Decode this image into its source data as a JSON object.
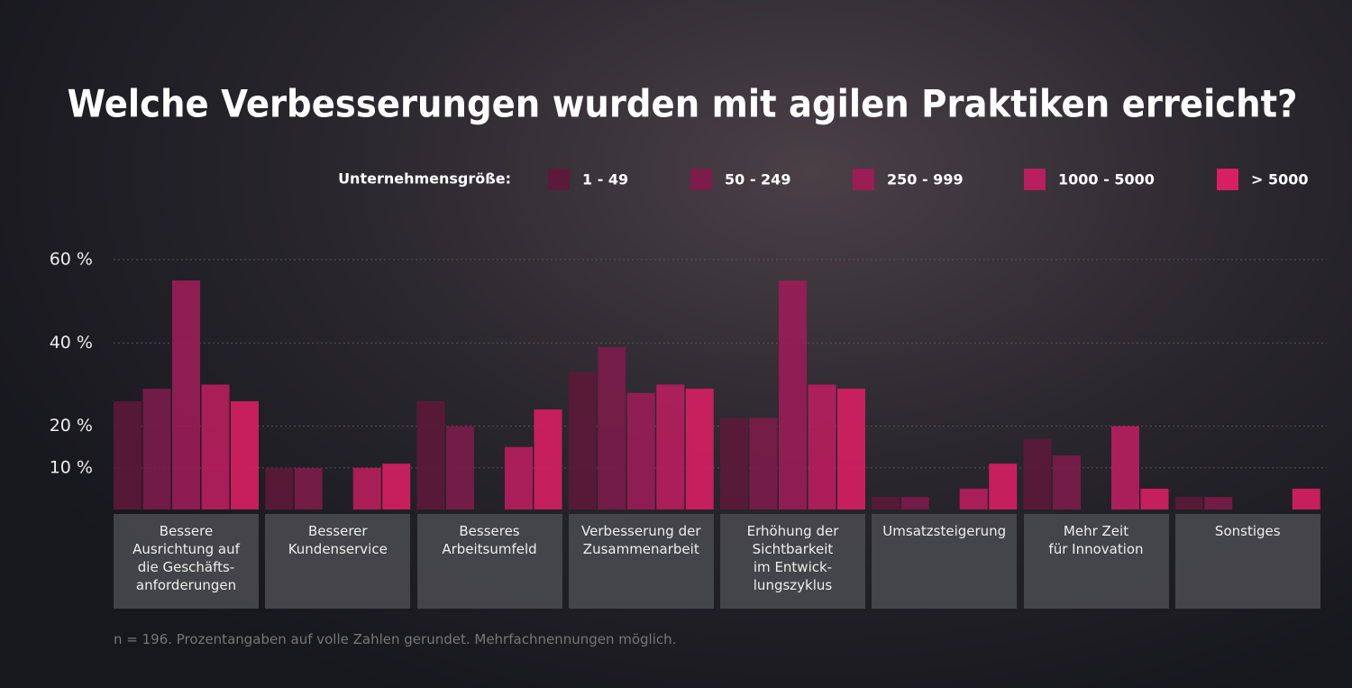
{
  "chart_data": {
    "type": "bar",
    "title": "Welche Verbesserungen wurden mit agilen Praktiken erreicht?",
    "legend_title": "Unternehmensgröße:",
    "categories": [
      "Bessere\nAusrichtung auf\ndie Geschäfts-\nanforderungen",
      "Besserer\nKundenservice",
      "Besseres\nArbeitsumfeld",
      "Verbesserung der\nZusammenarbeit",
      "Erhöhung der\nSichtbarkeit\nim Entwick-\nlungszyklus",
      "Umsatzsteigerung",
      "Mehr Zeit\nfür Innovation",
      "Sonstiges"
    ],
    "series": [
      {
        "name": "1 - 49",
        "color": "#5c1a3a",
        "values": [
          26,
          10,
          26,
          33,
          22,
          3,
          17,
          3
        ]
      },
      {
        "name": "50 - 249",
        "color": "#7b1c4a",
        "values": [
          29,
          10,
          20,
          39,
          22,
          3,
          13,
          3
        ]
      },
      {
        "name": "250 - 999",
        "color": "#9a1d56",
        "values": [
          55,
          0,
          0,
          28,
          55,
          0,
          0,
          0
        ]
      },
      {
        "name": "1000 - 5000",
        "color": "#b91e5e",
        "values": [
          30,
          10,
          15,
          30,
          30,
          5,
          20,
          0
        ]
      },
      {
        "name": "> 5000",
        "color": "#d81f63",
        "values": [
          26,
          11,
          24,
          29,
          29,
          11,
          5,
          5
        ]
      }
    ],
    "ylim": [
      0,
      70
    ],
    "yticks": [
      {
        "value": 10,
        "label": "10 %"
      },
      {
        "value": 20,
        "label": "20 %"
      },
      {
        "value": 40,
        "label": "40 %"
      },
      {
        "value": 60,
        "label": "60 %"
      }
    ],
    "grid": true,
    "footnote": "n = 196. Prozentangaben auf volle Zahlen gerundet. Mehrfachnennungen möglich."
  }
}
